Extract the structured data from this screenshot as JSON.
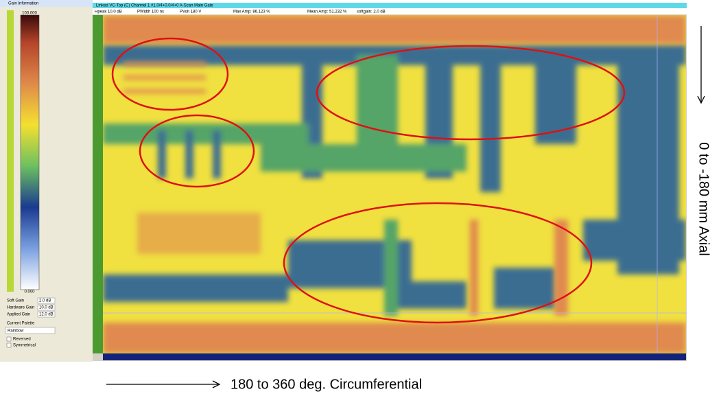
{
  "panel": {
    "title": "Gain Information",
    "scale_max": "100.000",
    "scale_min": "0.000",
    "fields": [
      {
        "label": "Soft Gain",
        "value": "2.0 dB"
      },
      {
        "label": "Hardware Gain",
        "value": "10.0 dB"
      },
      {
        "label": "Applied Gain",
        "value": "12.0 dB"
      }
    ],
    "palette_label": "Current Palette",
    "palette": "Rainbow",
    "options": [
      "Reversed",
      "Symmetrical"
    ]
  },
  "window": {
    "title": "Linked VC-Top (C) Channel 1 #1.0/4+0.0/4+0 A-Scan Main Gate",
    "info": [
      "Hpeak 10.0 dB",
      "PWidth 100 ns",
      "PVolt 180 V",
      "Max Amp: 86.123 %",
      "Mean Amp: 51.232 %",
      "softgain: 2.0 dB"
    ]
  },
  "annotations": {
    "axial": "0 to -180 mm Axial",
    "circumferential": "180 to 360 deg. Circumferential"
  }
}
